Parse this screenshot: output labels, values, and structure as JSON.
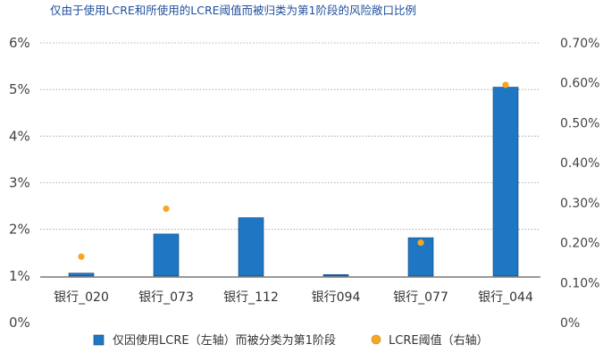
{
  "chart_data": {
    "type": "bar",
    "title": "仅由于使用LCRE和所使用的LCRE阈值而被归类为第1阶段的风险敞口比例",
    "categories": [
      "银行_020",
      "银行_073",
      "银行_112",
      "银行094",
      "银行_077",
      "银行_044"
    ],
    "series": [
      {
        "name": "仅因使用LCRE（左轴）而被分类为第1阶段",
        "type": "bar",
        "axis": "left",
        "color": "#1f77c4",
        "values": [
          1.06,
          1.9,
          2.25,
          1.03,
          1.82,
          5.05
        ]
      },
      {
        "name": "LCRE阈值（右轴）",
        "type": "scatter",
        "axis": "right",
        "color": "#f5a623",
        "values": [
          0.165,
          0.285,
          null,
          null,
          0.2,
          0.595
        ]
      }
    ],
    "left_axis": {
      "min": 0,
      "max": 6,
      "ticks": [
        "0%",
        "1%",
        "2%",
        "3%",
        "4%",
        "5%",
        "6%"
      ]
    },
    "right_axis": {
      "min": 0,
      "max": 0.7,
      "ticks": [
        "0%",
        "0.10%",
        "0.20%",
        "0.30%",
        "0.40%",
        "0.50%",
        "0.60%",
        "0.70%"
      ]
    },
    "gridlines": "dotted",
    "legend_position": "bottom"
  }
}
